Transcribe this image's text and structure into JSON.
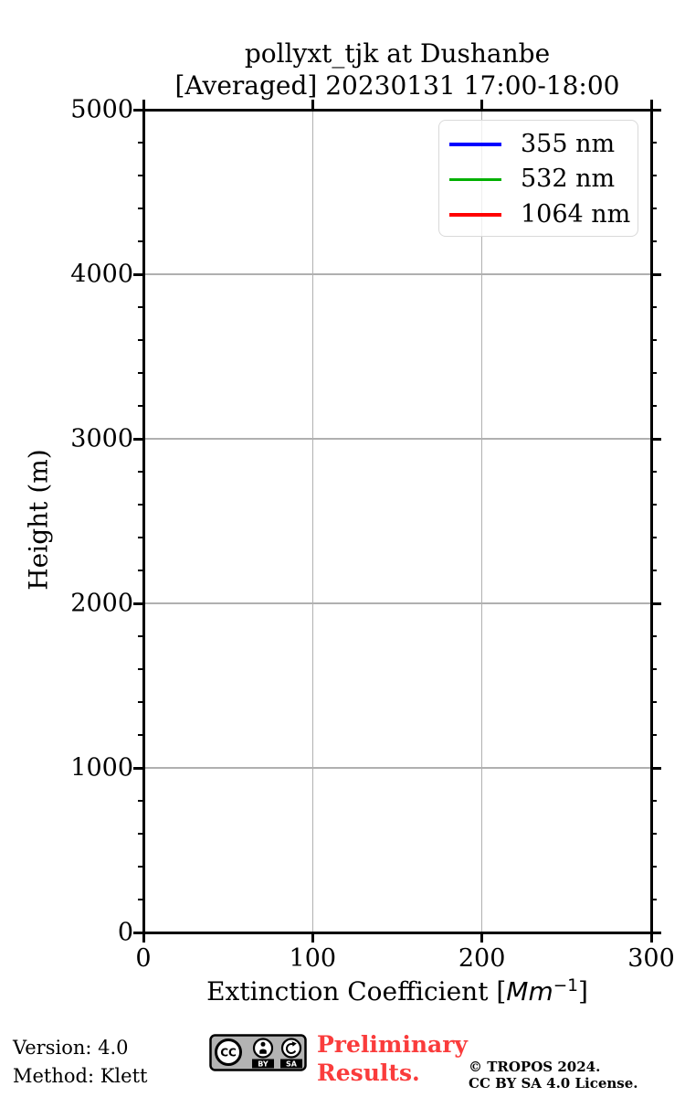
{
  "chart": {
    "title_line1": "pollyxt_tjk at Dushanbe",
    "title_line2": "[Averaged] 20230131 17:00-18:00",
    "xlabel_prefix": "Extinction Coefficient [",
    "xlabel_unit": "Mm",
    "xlabel_sup": "−1",
    "xlabel_suffix": "]"
  },
  "chart_data": {
    "type": "line",
    "title": "pollyxt_tjk at Dushanbe [Averaged] 20230131 17:00-18:00",
    "xlabel": "Extinction Coefficient [Mm−1]",
    "ylabel": "Height (m)",
    "xlim": [
      0,
      300
    ],
    "ylim": [
      0,
      5000
    ],
    "xticks": [
      "0",
      "100",
      "200",
      "300"
    ],
    "xtick_values": [
      0,
      100,
      200,
      300
    ],
    "yticks": [
      "0",
      "1000",
      "2000",
      "3000",
      "4000",
      "5000"
    ],
    "ytick_values": [
      0,
      1000,
      2000,
      3000,
      4000,
      5000
    ],
    "y_minor_step": 200,
    "grid": true,
    "grid_color": "#b0b0b0",
    "legend_position": "upper right",
    "series": [
      {
        "name": "355 nm",
        "color": "#0000ff",
        "x": [],
        "y": []
      },
      {
        "name": "532 nm",
        "color": "#00b000",
        "x": [],
        "y": []
      },
      {
        "name": "1064 nm",
        "color": "#ff0000",
        "x": [],
        "y": []
      }
    ]
  },
  "footer": {
    "version_label": "Version: 4.0",
    "method_label": "Method: Klett",
    "preliminary_line1": "Preliminary",
    "preliminary_line2": "Results.",
    "preliminary_color": "#fa3c3c",
    "copyright_line1": "© TROPOS 2024.",
    "copyright_line2": "CC BY SA 4.0 License.",
    "cc_badge": {
      "cc": "CC",
      "by": "BY",
      "sa": "SA"
    }
  }
}
